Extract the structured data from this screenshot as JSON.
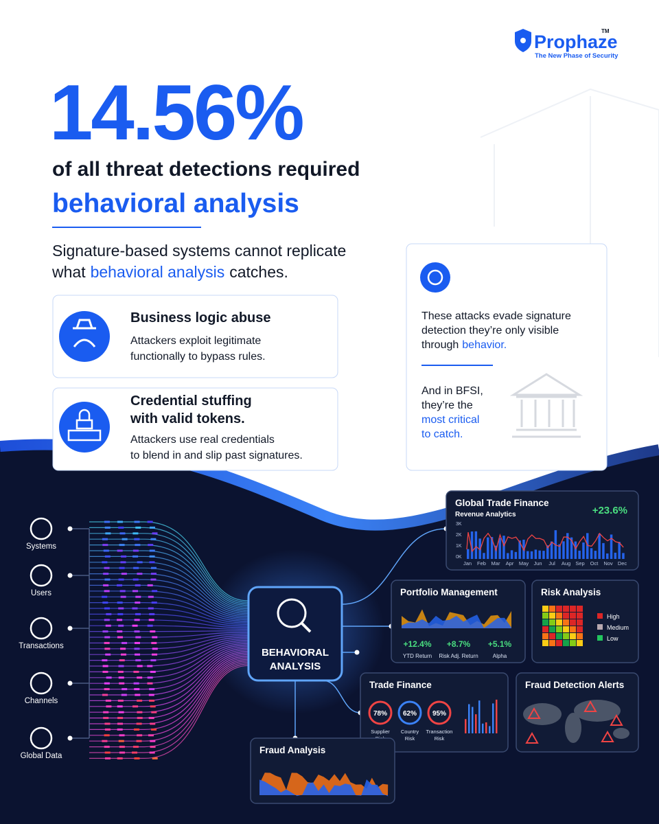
{
  "brand": {
    "name": "Prophaze",
    "mark": "TM",
    "tagline": "The New Phase of Security"
  },
  "headline": {
    "stat": "14.56%",
    "line1": "of all threat detections required",
    "line2": "behavioral analysis"
  },
  "intro": {
    "line1": "Signature-based systems cannot replicate",
    "line2_start": "what",
    "highlight": "behavioral analysis",
    "line2_end": "catches."
  },
  "cards": [
    {
      "title": [
        "Business logic abuse"
      ],
      "description": [
        "Attackers exploit legitimate",
        "functionally to bypass rules."
      ]
    },
    {
      "title": [
        "Credential stuffing",
        "with valid tokens."
      ],
      "description": [
        "Attackers use real credentials",
        "to blend in and slip past signatures."
      ]
    }
  ],
  "insight": {
    "lines": [
      "These attacks evade signature",
      "detection they’re only visible"
    ],
    "line3_start": "through",
    "highlight": "behavior.",
    "bfsi_lines": [
      "And in BFSI,",
      "they’re the"
    ],
    "bfsi_highlight": [
      "most critical",
      "to catch."
    ]
  },
  "sources": [
    "Systems",
    "Users",
    "Transactions",
    "Channels",
    "Global Data"
  ],
  "hub": [
    "BEHAVIORAL",
    "ANALYSIS"
  ],
  "panels": {
    "global_trade": {
      "title": "Global Trade Finance",
      "subtitle": "Revenue Analytics",
      "change": "+23.6%",
      "y_labels": [
        "3K",
        "2K",
        "1K",
        "0K"
      ],
      "months": [
        "Jan",
        "Feb",
        "Mar",
        "Apr",
        "May",
        "Jun",
        "Jul",
        "Aug",
        "Sep",
        "Oct",
        "Nov",
        "Dec"
      ]
    },
    "portfolio": {
      "title": "Portfolio Management",
      "metrics": [
        {
          "value": "+12.4%",
          "label": "YTD Return"
        },
        {
          "value": "+8.7%",
          "label": "Risk Adj. Return"
        },
        {
          "value": "+5.1%",
          "label": "Alpha"
        }
      ]
    },
    "risk": {
      "title": "Risk Analysis",
      "legend": [
        "High",
        "Medium",
        "Low"
      ]
    },
    "trade_finance": {
      "title": "Trade Finance",
      "gauges": [
        {
          "value": "78%",
          "label": [
            "Supplier",
            "Risk"
          ]
        },
        {
          "value": "62%",
          "label": [
            "Country",
            "Risk"
          ]
        },
        {
          "value": "95%",
          "label": [
            "Transaction",
            "Risk"
          ]
        }
      ]
    },
    "fraud_alerts": {
      "title": "Fraud Detection Alerts"
    },
    "fraud_analysis": {
      "title": "Fraud Analysis"
    }
  }
}
